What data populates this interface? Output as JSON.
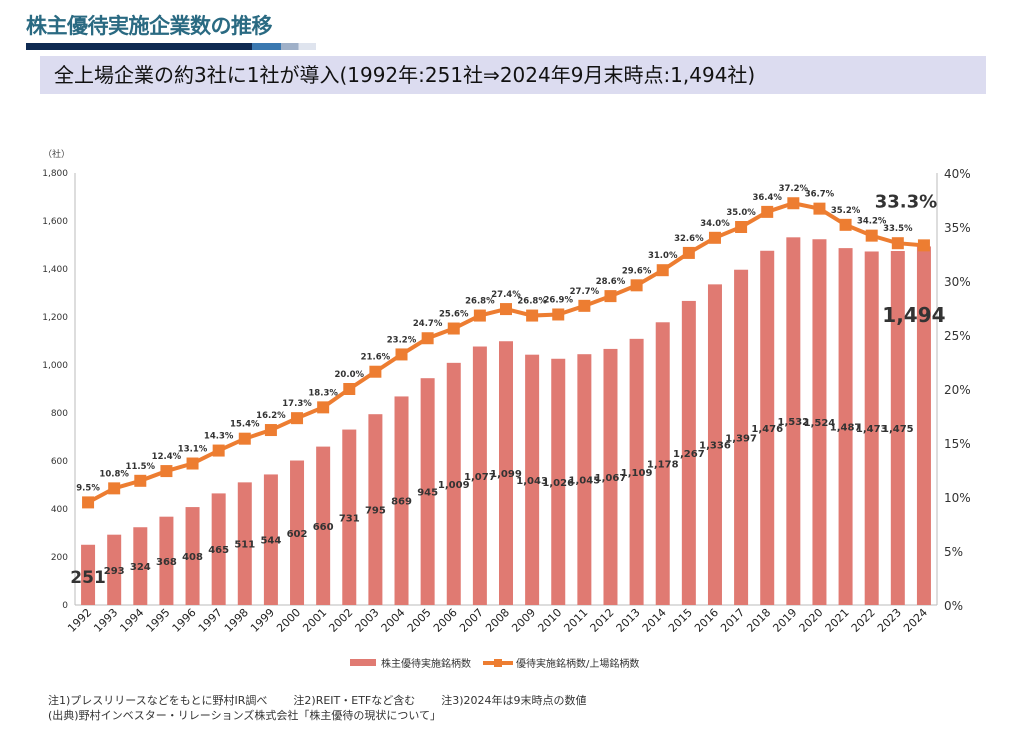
{
  "title": "株主優待実施企業数の推移",
  "subtitle": "全上場企業の約3社に1社が導入(1992年:251社⇒2024年9月末時点:1,494社)",
  "notes": [
    "注1)プレスリリースなどをもとに野村IR調べ",
    "注2)REIT・ETFなど含む",
    "注3)2024年は9末時点の数値"
  ],
  "source": "(出典)野村インベスター・リレーションズ株式会社「株主優待の現状について」",
  "chart_data": {
    "type": "bar+line",
    "left_unit": "（社）",
    "categories": [
      "1992",
      "1993",
      "1994",
      "1995",
      "1996",
      "1997",
      "1998",
      "1999",
      "2000",
      "2001",
      "2002",
      "2003",
      "2004",
      "2005",
      "2006",
      "2007",
      "2008",
      "2009",
      "2010",
      "2011",
      "2012",
      "2013",
      "2014",
      "2015",
      "2016",
      "2017",
      "2018",
      "2019",
      "2020",
      "2021",
      "2022",
      "2023",
      "2024"
    ],
    "series": [
      {
        "name": "株主優待実施銘柄数",
        "type": "bar",
        "axis": "left",
        "color": "#e07a72",
        "values": [
          251,
          293,
          324,
          368,
          408,
          465,
          511,
          544,
          602,
          660,
          731,
          795,
          869,
          945,
          1009,
          1077,
          1099,
          1043,
          1026,
          1045,
          1067,
          1109,
          1178,
          1267,
          1336,
          1397,
          1476,
          1532,
          1524,
          1487,
          1473,
          1475,
          1494
        ],
        "labels": [
          "251",
          "293",
          "324",
          "368",
          "408",
          "465",
          "511",
          "544",
          "602",
          "660",
          "731",
          "795",
          "869",
          "945",
          "1,009",
          "1,077",
          "1,099",
          "1,043",
          "1,026",
          "1,045",
          "1,067",
          "1,109",
          "1,178",
          "1,267",
          "1,336",
          "1,397",
          "1,476",
          "1,532",
          "1,524",
          "1,487",
          "1,473",
          "1,475",
          "1,494"
        ]
      },
      {
        "name": "優待実施銘柄数/上場銘柄数",
        "type": "line",
        "axis": "right",
        "color": "#ed7d31",
        "values": [
          9.5,
          10.8,
          11.5,
          12.4,
          13.1,
          14.3,
          15.4,
          16.2,
          17.3,
          18.3,
          20.0,
          21.6,
          23.2,
          24.7,
          25.6,
          26.8,
          27.4,
          26.8,
          26.9,
          27.7,
          28.6,
          29.6,
          31.0,
          32.6,
          34.0,
          35.0,
          36.4,
          37.2,
          36.7,
          35.2,
          34.2,
          33.5,
          33.3
        ]
      }
    ],
    "ylim_left": [
      0,
      1800
    ],
    "left_ticks": [
      "0",
      "200",
      "400",
      "600",
      "800",
      "1,000",
      "1,200",
      "1,400",
      "1,600",
      "1,800"
    ],
    "ylim_right": [
      0,
      40
    ],
    "right_ticks": [
      "0%",
      "5%",
      "10%",
      "15%",
      "20%",
      "25%",
      "30%",
      "35%",
      "40%"
    ],
    "grid": false,
    "legend": "bottom"
  }
}
